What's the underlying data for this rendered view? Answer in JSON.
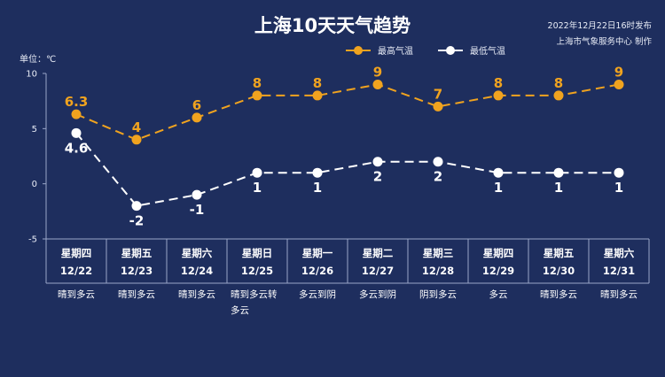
{
  "header": {
    "title": "上海10天天气趋势",
    "publish_time": "2022年12月22日16时发布",
    "producer": "上海市气象服务中心 制作"
  },
  "colors": {
    "background": "#1e2e5e",
    "high": "#f0a31f",
    "low": "#ffffff"
  },
  "chart_data": {
    "type": "line",
    "unit_label": "单位：℃",
    "ylim": [
      -5,
      10
    ],
    "yticks": [
      10,
      5,
      0,
      -5
    ],
    "grid": false,
    "legend_position": "top-right",
    "categories": [
      {
        "weekday": "星期四",
        "date": "12/22",
        "weather": "晴到多云"
      },
      {
        "weekday": "星期五",
        "date": "12/23",
        "weather": "晴到多云"
      },
      {
        "weekday": "星期六",
        "date": "12/24",
        "weather": "晴到多云"
      },
      {
        "weekday": "星期日",
        "date": "12/25",
        "weather": "晴到多云转多云"
      },
      {
        "weekday": "星期一",
        "date": "12/26",
        "weather": "多云到阴"
      },
      {
        "weekday": "星期二",
        "date": "12/27",
        "weather": "多云到阴"
      },
      {
        "weekday": "星期三",
        "date": "12/28",
        "weather": "阴到多云"
      },
      {
        "weekday": "星期四",
        "date": "12/29",
        "weather": "多云"
      },
      {
        "weekday": "星期五",
        "date": "12/30",
        "weather": "晴到多云"
      },
      {
        "weekday": "星期六",
        "date": "12/31",
        "weather": "晴到多云"
      }
    ],
    "series": [
      {
        "name": "最高气温",
        "values": [
          6.3,
          4,
          6,
          8,
          8,
          9,
          7,
          8,
          8,
          9
        ],
        "labels": [
          "6.3",
          "4",
          "6",
          "8",
          "8",
          "9",
          "7",
          "8",
          "8",
          "9"
        ]
      },
      {
        "name": "最低气温",
        "values": [
          4.6,
          -2,
          -1,
          1,
          1,
          2,
          2,
          1,
          1,
          1
        ],
        "labels": [
          "4.6",
          "-2",
          "-1",
          "1",
          "1",
          "2",
          "2",
          "1",
          "1",
          "1"
        ]
      }
    ]
  }
}
